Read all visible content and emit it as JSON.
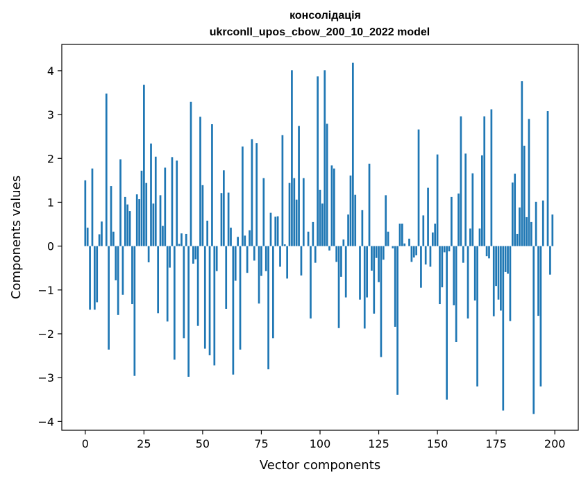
{
  "chart_data": {
    "type": "bar",
    "title": "консолідація",
    "subtitle": "ukrconll_upos_cbow_200_10_2022 model",
    "xlabel": "Vector components",
    "ylabel": "Components values",
    "xlim": [
      -10,
      210
    ],
    "ylim": [
      -4.2,
      4.6
    ],
    "xticks": [
      0,
      25,
      50,
      75,
      100,
      125,
      150,
      175,
      200
    ],
    "yticks": [
      -4,
      -3,
      -2,
      -1,
      0,
      1,
      2,
      3,
      4
    ],
    "xtick_labels": [
      "0",
      "25",
      "50",
      "75",
      "100",
      "125",
      "150",
      "175",
      "200"
    ],
    "ytick_labels": [
      "−4",
      "−3",
      "−2",
      "−1",
      "0",
      "1",
      "2",
      "3",
      "4"
    ],
    "bar_color": "#1f77b4",
    "grid": false,
    "values": [
      1.5,
      0.42,
      -1.45,
      1.77,
      -1.45,
      -1.28,
      0.27,
      0.56,
      0.0,
      3.48,
      -2.36,
      1.37,
      0.33,
      -0.78,
      -1.57,
      1.98,
      -1.11,
      1.12,
      0.95,
      0.8,
      -1.32,
      -2.96,
      1.18,
      1.07,
      1.72,
      3.68,
      1.44,
      -0.37,
      2.34,
      0.97,
      2.04,
      -1.53,
      1.16,
      0.46,
      1.79,
      -1.72,
      -0.49,
      2.03,
      -2.59,
      1.95,
      0.05,
      0.29,
      -2.1,
      0.28,
      -2.98,
      3.29,
      -0.4,
      -0.3,
      -1.82,
      2.95,
      1.39,
      -2.34,
      0.58,
      -2.49,
      2.78,
      -2.72,
      -0.57,
      0.0,
      1.21,
      1.73,
      -1.43,
      1.22,
      0.42,
      -2.93,
      -0.79,
      0.21,
      -2.36,
      2.27,
      0.24,
      -0.61,
      0.36,
      2.44,
      -0.33,
      2.35,
      -1.31,
      -0.68,
      1.55,
      -0.57,
      -2.81,
      0.76,
      -2.1,
      0.67,
      0.68,
      -0.47,
      2.53,
      0.04,
      -0.74,
      1.44,
      4.01,
      1.55,
      1.06,
      2.74,
      -0.67,
      1.55,
      0.0,
      0.33,
      -1.65,
      0.55,
      -0.38,
      3.87,
      1.28,
      0.97,
      4.01,
      2.79,
      -0.1,
      1.84,
      1.77,
      -0.36,
      -1.87,
      -0.7,
      0.15,
      -1.17,
      0.72,
      1.61,
      4.18,
      1.17,
      0.0,
      -1.22,
      0.82,
      -1.88,
      -1.17,
      1.88,
      -0.56,
      -1.54,
      -0.27,
      -0.82,
      -2.53,
      -0.31,
      1.16,
      0.33,
      0.0,
      -0.05,
      -1.84,
      -3.39,
      0.51,
      0.51,
      0.06,
      0.0,
      0.17,
      -0.36,
      -0.26,
      -0.21,
      2.66,
      -0.95,
      0.7,
      -0.42,
      1.33,
      -0.47,
      0.31,
      0.51,
      2.09,
      -1.32,
      -0.94,
      -0.14,
      -3.5,
      -0.12,
      1.12,
      -1.35,
      -2.19,
      1.2,
      2.96,
      -0.38,
      2.11,
      -1.65,
      0.4,
      1.66,
      -1.24,
      -3.2,
      0.4,
      2.07,
      2.96,
      -0.23,
      -0.28,
      3.12,
      -1.6,
      -0.91,
      -1.22,
      -1.47,
      -3.75,
      -0.59,
      -0.63,
      -1.71,
      1.45,
      1.65,
      0.28,
      0.88,
      3.76,
      2.29,
      0.66,
      2.9,
      0.55,
      -3.83,
      1.01,
      -1.59,
      -3.2,
      1.04,
      0.0,
      3.08,
      -0.65,
      0.72
    ]
  }
}
